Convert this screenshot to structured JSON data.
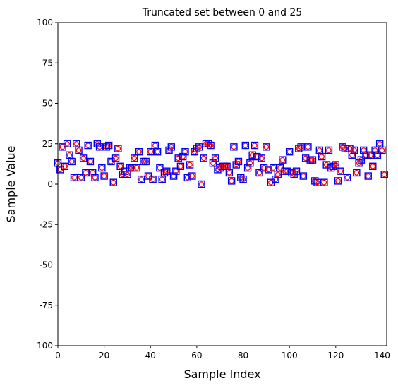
{
  "chart_data": {
    "type": "scatter",
    "title": "Truncated set between 0 and 25",
    "xlabel": "Sample Index",
    "ylabel": "Sample Value",
    "xlim": [
      0,
      142
    ],
    "ylim": [
      -100,
      100
    ],
    "xticks": [
      0,
      20,
      40,
      60,
      80,
      100,
      120,
      140
    ],
    "yticks": [
      -100,
      -75,
      -50,
      -25,
      0,
      25,
      50,
      75,
      100
    ],
    "grid": false,
    "marker": {
      "shape": "square",
      "edge_color": "#0000ff",
      "inner_marker": "circle",
      "inner_color": "#ff0000",
      "fill": "none"
    },
    "series": [
      {
        "x": [
          0,
          1,
          2,
          3,
          4,
          5,
          6,
          7,
          8,
          9,
          10,
          11,
          12,
          13,
          14,
          15,
          16,
          17,
          18,
          19,
          20,
          21,
          22,
          23,
          24,
          25,
          26,
          27,
          28,
          29,
          30,
          31,
          32,
          33,
          34,
          35,
          36,
          37,
          38,
          39,
          40,
          41,
          42,
          43,
          44,
          45,
          46,
          47,
          48,
          49,
          50,
          51,
          52,
          53,
          54,
          55,
          56,
          57,
          58,
          59,
          60,
          61,
          62,
          63,
          64,
          65,
          66,
          67,
          68,
          69,
          70,
          71,
          72,
          73,
          74,
          75,
          76,
          77,
          78,
          79,
          80,
          81,
          82,
          83,
          84,
          85,
          86,
          87,
          88,
          89,
          90,
          91,
          92,
          93,
          94,
          95,
          96,
          97,
          98,
          99,
          100,
          101,
          102,
          103,
          104,
          105,
          106,
          107,
          108,
          109,
          110,
          111,
          112,
          113,
          114,
          115,
          116,
          117,
          118,
          119,
          120,
          121,
          122,
          123,
          124,
          125,
          126,
          127,
          128,
          129,
          130,
          131,
          132,
          133,
          134,
          135,
          136,
          137,
          138,
          139,
          140,
          141
        ],
        "y": [
          13,
          9,
          23,
          11,
          25,
          18,
          14,
          4,
          25,
          21,
          4,
          16,
          7,
          24,
          14,
          7,
          4,
          25,
          23,
          10,
          5,
          23,
          24,
          14,
          1,
          16,
          22,
          11,
          6,
          8,
          6,
          10,
          10,
          16,
          10,
          20,
          3,
          14,
          14,
          5,
          20,
          3,
          24,
          20,
          10,
          3,
          7,
          8,
          21,
          23,
          5,
          8,
          16,
          11,
          17,
          20,
          4,
          12,
          5,
          20,
          22,
          23,
          0,
          16,
          25,
          25,
          24,
          13,
          16,
          9,
          10,
          11,
          11,
          11,
          7,
          2,
          23,
          12,
          14,
          4,
          3,
          24,
          10,
          13,
          18,
          24,
          17,
          7,
          16,
          10,
          23,
          9,
          1,
          10,
          3,
          6,
          10,
          15,
          8,
          8,
          20,
          7,
          6,
          8,
          22,
          23,
          5,
          16,
          23,
          15,
          15,
          2,
          1,
          21,
          17,
          1,
          12,
          21,
          10,
          11,
          12,
          2,
          8,
          23,
          22,
          4,
          22,
          18,
          21,
          7,
          13,
          15,
          21,
          18,
          5,
          18,
          11,
          21,
          18,
          25,
          21,
          6
        ]
      }
    ]
  }
}
